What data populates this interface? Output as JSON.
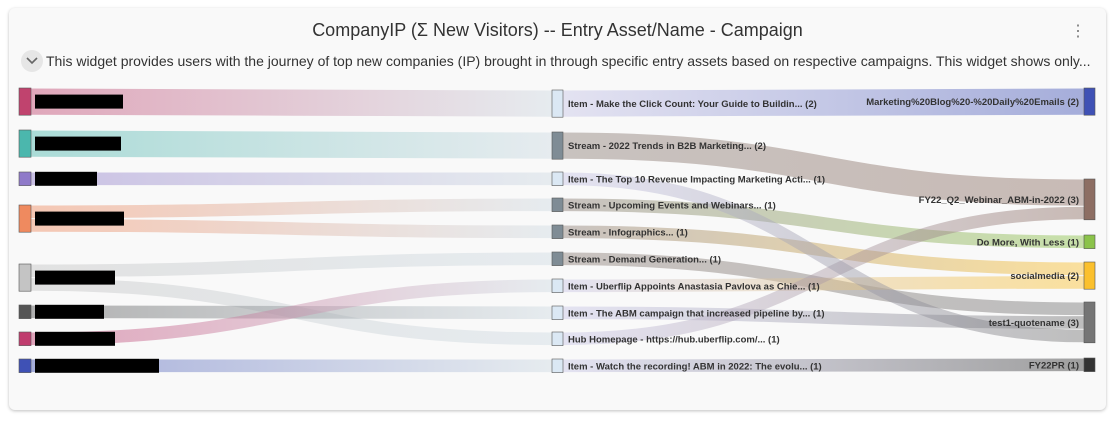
{
  "widget": {
    "title": "CompanyIP (Σ New Visitors) -- Entry Asset/Name - Campaign",
    "description": "This widget provides users with the journey of top new companies (IP) brought in through specific entry assets based on respective campaigns. This widget shows only...",
    "menu_icon": "more-vertical-icon",
    "toggle_icon": "chevron-down-icon"
  },
  "chart_data": {
    "type": "sankey",
    "title": "CompanyIP (Σ New Visitors) -- Entry Asset/Name - Campaign",
    "stages": [
      "CompanyIP",
      "Entry Asset/Name",
      "Campaign"
    ],
    "sources": [
      {
        "id": "c1",
        "name": "[redacted]",
        "value": 2,
        "color": "#c0436e"
      },
      {
        "id": "c2",
        "name": "[redacted]",
        "value": 2,
        "color": "#4bb7ad"
      },
      {
        "id": "c3",
        "name": "[redacted]",
        "value": 1,
        "color": "#8f7ac9"
      },
      {
        "id": "c4",
        "name": "[redacted]",
        "value": 2,
        "color": "#ef8a5f"
      },
      {
        "id": "c5",
        "name": "[redacted]",
        "value": 2,
        "color": "#c4c4c4"
      },
      {
        "id": "c6",
        "name": "[redacted]",
        "value": 1,
        "color": "#555555"
      },
      {
        "id": "c7",
        "name": "[redacted]",
        "value": 1,
        "color": "#c03c6e"
      },
      {
        "id": "c8",
        "name": "[redacted]",
        "value": 1,
        "color": "#3f51b5"
      }
    ],
    "assets": [
      {
        "id": "a1",
        "label": "Item - Make the Click Count: Your Guide to Buildin... (2)",
        "value": 2,
        "color": "#dbe8f4"
      },
      {
        "id": "a2",
        "label": "Stream - 2022 Trends in B2B Marketing... (2)",
        "value": 2,
        "color": "#7f8c95"
      },
      {
        "id": "a3",
        "label": "Item - The Top 10 Revenue Impacting Marketing Acti... (1)",
        "value": 1,
        "color": "#dbe8f4"
      },
      {
        "id": "a4",
        "label": "Stream - Upcoming Events and Webinars... (1)",
        "value": 1,
        "color": "#7f8c95"
      },
      {
        "id": "a5",
        "label": "Stream - Infographics... (1)",
        "value": 1,
        "color": "#7f8c95"
      },
      {
        "id": "a6",
        "label": "Stream - Demand Generation... (1)",
        "value": 1,
        "color": "#7f8c95"
      },
      {
        "id": "a7",
        "label": "Item - Uberflip Appoints Anastasia Pavlova as Chie... (1)",
        "value": 1,
        "color": "#dbe8f4"
      },
      {
        "id": "a8",
        "label": "Item - The ABM campaign that increased pipeline by... (1)",
        "value": 1,
        "color": "#dbe8f4"
      },
      {
        "id": "a9",
        "label": "Hub Homepage - https://hub.uberflip.com/... (1)",
        "value": 1,
        "color": "#dbe8f4"
      },
      {
        "id": "a10",
        "label": "Item - Watch the recording! ABM in 2022: The evolu... (1)",
        "value": 1,
        "color": "#dbe8f4"
      }
    ],
    "campaigns": [
      {
        "id": "k1",
        "label": "Marketing%20Blog%20-%20Daily%20Emails (2)",
        "value": 2,
        "color": "#3f51b5"
      },
      {
        "id": "k2",
        "label": "FY22_Q2_Webinar_ABM-in-2022 (3)",
        "value": 3,
        "color": "#8d6e63"
      },
      {
        "id": "k3",
        "label": "Do More, With Less (1)",
        "value": 1,
        "color": "#8bc34a"
      },
      {
        "id": "k4",
        "label": "socialmedia (2)",
        "value": 2,
        "color": "#fbc02d"
      },
      {
        "id": "k5",
        "label": "test1-quotename (3)",
        "value": 3,
        "color": "#757575"
      },
      {
        "id": "k6",
        "label": "FY22PR (1)",
        "value": 1,
        "color": "#333333"
      }
    ],
    "links_company_to_asset": [
      {
        "source": "c1",
        "target": "a1",
        "value": 2
      },
      {
        "source": "c2",
        "target": "a2",
        "value": 2
      },
      {
        "source": "c3",
        "target": "a3",
        "value": 1
      },
      {
        "source": "c4",
        "target": "a4",
        "value": 1
      },
      {
        "source": "c4",
        "target": "a5",
        "value": 1
      },
      {
        "source": "c5",
        "target": "a6",
        "value": 1
      },
      {
        "source": "c5",
        "target": "a9",
        "value": 1
      },
      {
        "source": "c6",
        "target": "a8",
        "value": 1
      },
      {
        "source": "c7",
        "target": "a7",
        "value": 1
      },
      {
        "source": "c8",
        "target": "a10",
        "value": 1
      }
    ],
    "links_asset_to_campaign": [
      {
        "source": "a1",
        "target": "k1",
        "value": 2
      },
      {
        "source": "a2",
        "target": "k2",
        "value": 2
      },
      {
        "source": "a4",
        "target": "k3",
        "value": 1
      },
      {
        "source": "a5",
        "target": "k4",
        "value": 1
      },
      {
        "source": "a6",
        "target": "k5",
        "value": 1
      },
      {
        "source": "a7",
        "target": "k4",
        "value": 1
      },
      {
        "source": "a8",
        "target": "k5",
        "value": 1
      },
      {
        "source": "a9",
        "target": "k2",
        "value": 1
      },
      {
        "source": "a3",
        "target": "k5",
        "value": 1
      },
      {
        "source": "a10",
        "target": "k6",
        "value": 1
      }
    ]
  }
}
